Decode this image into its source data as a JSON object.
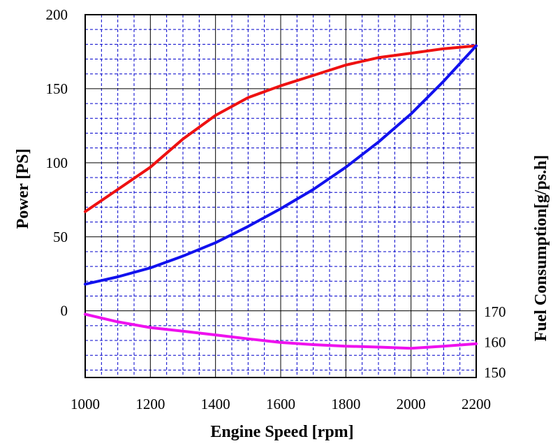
{
  "chart_data": {
    "type": "line",
    "title": "",
    "xlabel": "Engine Speed [rpm]",
    "ylabel": "Power [PS]",
    "y2label": "Fuel Consumption[g/ps.h]",
    "xlim": [
      1000,
      2200
    ],
    "ylim": [
      -45,
      200
    ],
    "y2lim": [
      150,
      171
    ],
    "x_ticks": [
      "1000",
      "1200",
      "1400",
      "1600",
      "1800",
      "2000",
      "2200"
    ],
    "y_ticks": [
      "0",
      "50",
      "100",
      "150",
      "200"
    ],
    "y2_ticks": [
      "150",
      "160",
      "170"
    ],
    "grid": true,
    "colors": {
      "red": "#ee1111",
      "blue": "#1111ee",
      "magenta": "#ee11ee",
      "grid_dash": "#0000cc"
    },
    "x": [
      1000,
      1100,
      1200,
      1300,
      1400,
      1500,
      1600,
      1700,
      1800,
      1900,
      2000,
      2100,
      2200
    ],
    "series": [
      {
        "axis": "left",
        "color": "#ee1111",
        "values": [
          67,
          82,
          97,
          116,
          132,
          144,
          152,
          159,
          166,
          171,
          174,
          177,
          179
        ]
      },
      {
        "axis": "left",
        "color": "#1111ee",
        "values": [
          18,
          23,
          29,
          37,
          46,
          57,
          69,
          82,
          97,
          114,
          133,
          155,
          179
        ]
      },
      {
        "axis": "right",
        "color": "#ee11ee",
        "values": [
          169.2,
          166.7,
          164.8,
          163.6,
          162.4,
          161.1,
          159.9,
          159.2,
          158.7,
          158.4,
          158.0,
          158.7,
          159.5
        ]
      }
    ]
  }
}
